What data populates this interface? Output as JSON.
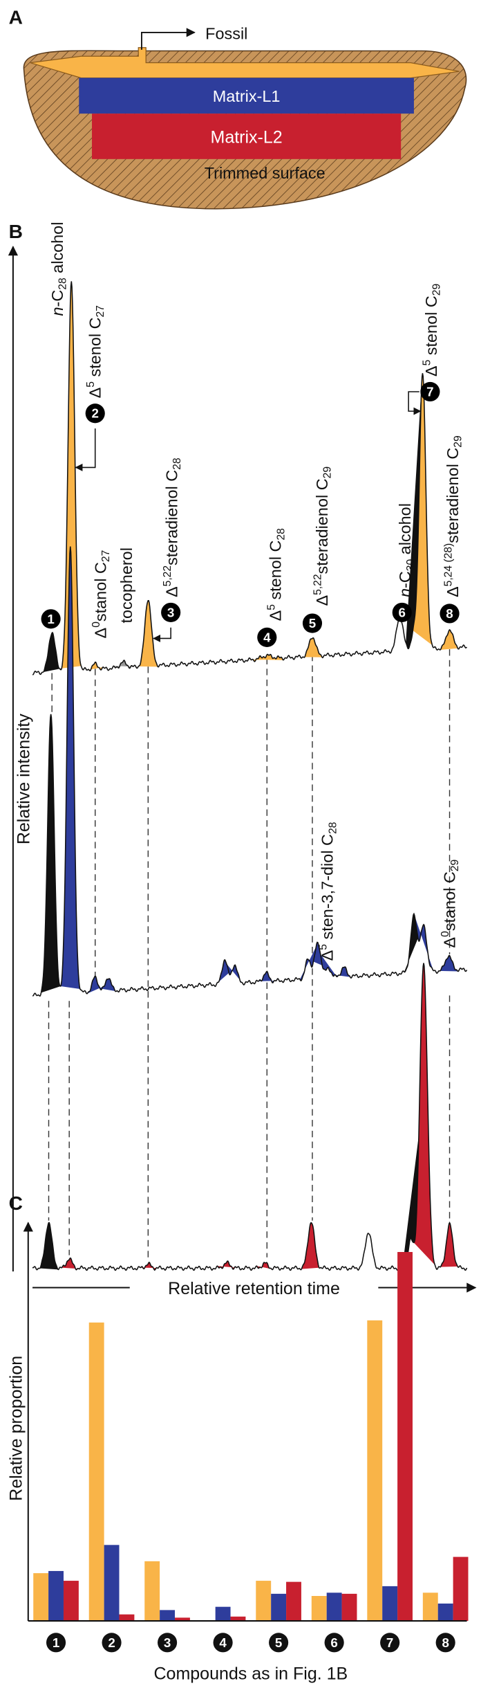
{
  "panel_a": {
    "label": "A",
    "fossil": "Fossil",
    "matrix_l1": "Matrix-L1",
    "matrix_l2": "Matrix-L2",
    "trimmed": "Trimmed surface"
  },
  "panel_b": {
    "label": "B",
    "y_label": "Relative intensity",
    "x_label": "Relative retention time",
    "markers": [
      "1",
      "2",
      "3",
      "4",
      "5",
      "6",
      "7",
      "8"
    ],
    "peak_labels": [
      [
        "n",
        "-C",
        "28",
        " alcohol"
      ],
      [
        "Δ",
        "5",
        " stenol C",
        "27"
      ],
      [
        "Δ",
        "0",
        "stanol C",
        "27"
      ],
      [
        "tocopherol"
      ],
      [
        "Δ",
        "5,22",
        "steradienol C",
        "28"
      ],
      [
        "Δ",
        "5",
        " stenol C",
        "28"
      ],
      [
        "Δ",
        "5,22",
        "steradienol C",
        "29"
      ],
      [
        "n",
        "-C",
        "30",
        " alcohol"
      ],
      [
        "Δ",
        "5",
        " stenol C",
        "29"
      ],
      [
        "Δ",
        "5,24 (28)",
        "steradienol C",
        "29"
      ],
      [
        "Δ",
        "5",
        " sten-3,7-diol C",
        "28"
      ],
      [
        "Δ",
        "0",
        "stanol C",
        "29"
      ]
    ]
  },
  "chart_data": {
    "type": "bar",
    "label": "C",
    "y_label": "Relative proportion",
    "x_label": "Compounds as in Fig. 1B",
    "categories": [
      "1",
      "2",
      "3",
      "4",
      "5",
      "6",
      "7",
      "8"
    ],
    "ylim": [
      0,
      360
    ],
    "series": [
      {
        "color": "#f9b448",
        "values": [
          44,
          275,
          55,
          0,
          37,
          23,
          277,
          26
        ]
      },
      {
        "color": "#2e3d9c",
        "values": [
          46,
          70,
          10,
          13,
          25,
          26,
          32,
          16
        ]
      },
      {
        "color": "#c8202f",
        "values": [
          37,
          6,
          3,
          4,
          36,
          25,
          340,
          59
        ]
      }
    ]
  }
}
